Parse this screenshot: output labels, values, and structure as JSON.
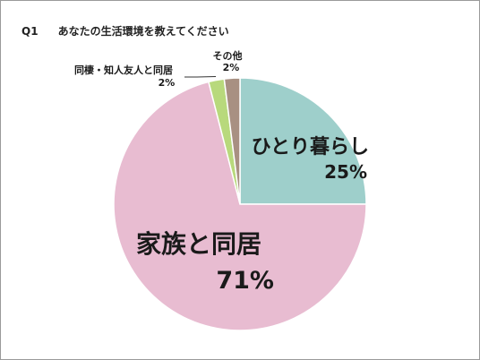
{
  "header": {
    "question_number": "Q1",
    "question_text": "あなたの生活環境を教えてください"
  },
  "chart_data": {
    "type": "pie",
    "title": "あなたの生活環境を教えてください",
    "start_angle": "12 o'clock, clockwise",
    "slices": [
      {
        "label": "ひとり暮らし",
        "value": 25,
        "value_label": "25%",
        "color": "#9ecfcb"
      },
      {
        "label": "家族と同居",
        "value": 71,
        "value_label": "71%",
        "color": "#e8bcd1"
      },
      {
        "label": "同棲・知人友人と同居",
        "value": 2,
        "value_label": "2%",
        "color": "#b8d97c"
      },
      {
        "label": "その他",
        "value": 2,
        "value_label": "2%",
        "color": "#a89082"
      }
    ]
  }
}
